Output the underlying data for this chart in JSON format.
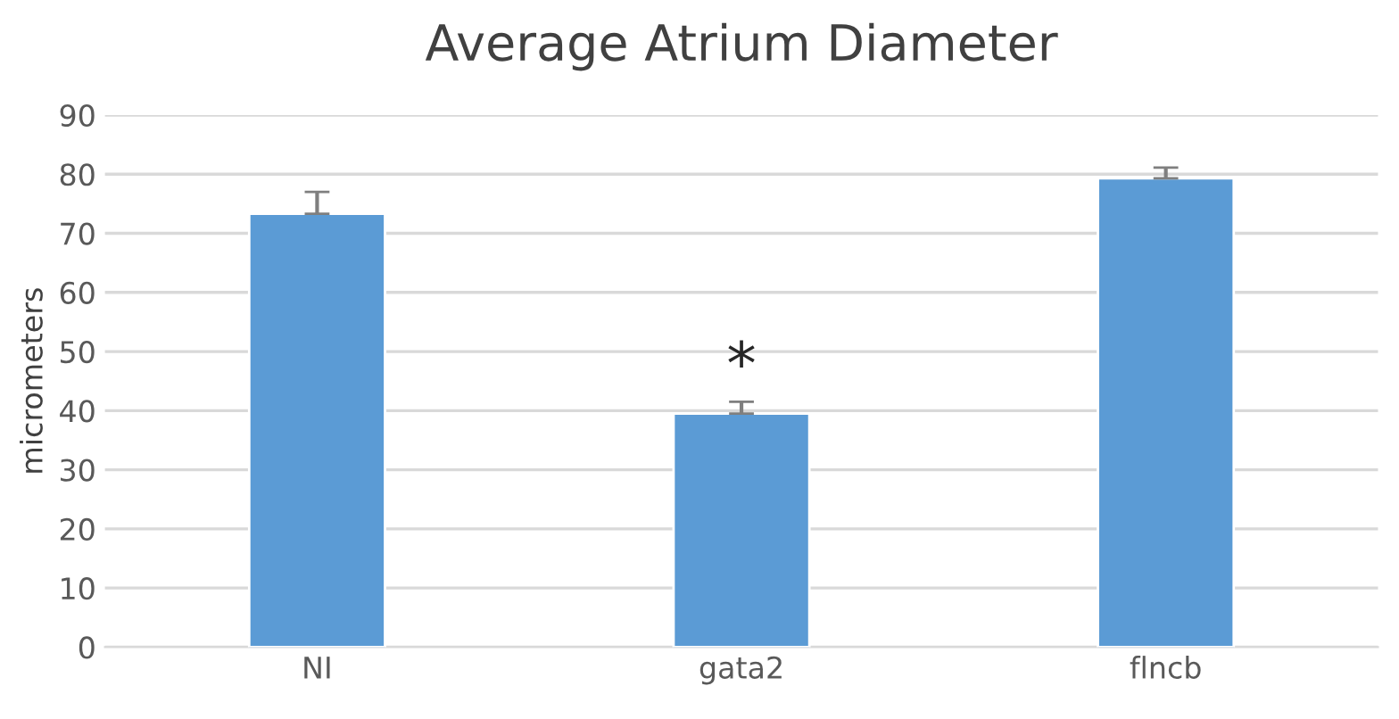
{
  "chart_data": {
    "type": "bar",
    "title": "Average Atrium Diameter",
    "ylabel": "micrometers",
    "categories": [
      "NI",
      "gata2",
      "flncb"
    ],
    "values": [
      73.3,
      39.5,
      79.3
    ],
    "errors": [
      3.7,
      2,
      1.8
    ],
    "color": "#5b9bd5",
    "ylim": [
      0,
      90
    ],
    "yticks": [
      0,
      10,
      20,
      30,
      40,
      50,
      60,
      70,
      80,
      90
    ],
    "grid": "y",
    "annotations": [
      {
        "text": "*",
        "x": "gata2",
        "y": 41.5
      }
    ]
  }
}
